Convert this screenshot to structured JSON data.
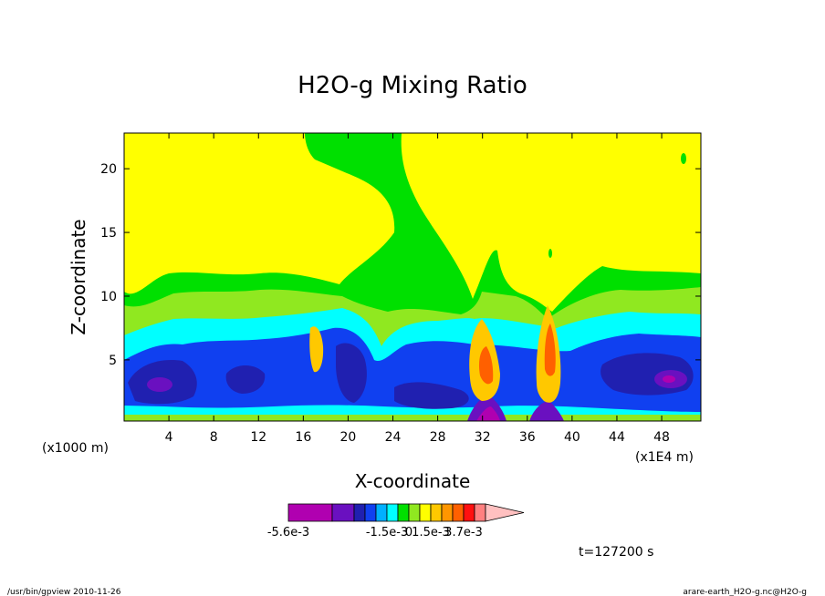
{
  "chart_data": {
    "type": "heatmap",
    "title": "H2O-g Mixing Ratio",
    "xlabel": "X-coordinate",
    "ylabel": "Z-coordinate",
    "x_unit_left": "(x1000 m)",
    "x_unit_right": "(x1E4 m)",
    "xlim": [
      0,
      51.5
    ],
    "ylim": [
      0.2,
      22.8
    ],
    "xticks": [
      4,
      8,
      12,
      16,
      20,
      24,
      28,
      32,
      36,
      40,
      44,
      48
    ],
    "yticks": [
      5,
      10,
      15,
      20
    ],
    "legend_placement": "bottom",
    "legend_labels": [
      {
        "text": "-5.6e-3",
        "level": 0
      },
      {
        "text": "-1.5e-3",
        "level": 5
      },
      {
        "text": "0",
        "level": 7
      },
      {
        "text": "1.5e-3",
        "level": 9
      },
      {
        "text": "3.7e-3",
        "level": 12
      }
    ],
    "legend_colors": [
      "#b000b0",
      "#6a10c0",
      "#2020b0",
      "#1040f0",
      "#00b0ff",
      "#00ffff",
      "#00e000",
      "#90e820",
      "#ffff00",
      "#ffc800",
      "#ff9600",
      "#ff6000",
      "#ff1010",
      "#ff8080",
      "#ffc0c0"
    ],
    "time_label": "t=127200 s",
    "footer_left": "/usr/bin/gpview  2010-11-26",
    "footer_right": "arare-earth_H2O-g.nc@H2O-g",
    "fields": {
      "background": "#ffff00",
      "lower_band": "#00e000",
      "middle_band": "#90e820",
      "moist_layer": "#00ffff",
      "deep_layer": "#1040f0",
      "core": "#2020b0",
      "minimum": "#6a10c0",
      "plume": "#ffc800",
      "plume_core": "#ff6000"
    }
  }
}
